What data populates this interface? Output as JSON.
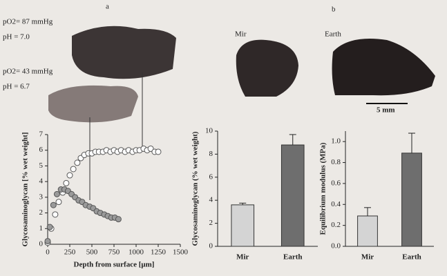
{
  "labels": {
    "panel_a": "a",
    "panel_b": "b",
    "po2_high": "pO2= 87 mmHg",
    "ph_high": "pH = 7.0",
    "po2_low": "pO2= 43 mmHg",
    "ph_low": "pH = 6.7",
    "img_mir": "Mir",
    "img_earth": "Earth",
    "scale": "5 mm"
  },
  "chart_data": [
    {
      "type": "scatter",
      "xlabel": "Depth from surface [μm]",
      "ylabel": "Glycosaminoglycan [% wet weight]",
      "xlim": [
        0,
        1500
      ],
      "xticks": [
        0,
        250,
        500,
        750,
        1000,
        1250,
        1500
      ],
      "ylim": [
        0,
        7
      ],
      "yticks": [
        0,
        1,
        2,
        3,
        4,
        5,
        6,
        7
      ],
      "series": [
        {
          "color": "#ffffff",
          "x": [
            0,
            40,
            85,
            125,
            170,
            210,
            250,
            290,
            335,
            375,
            415,
            460,
            500,
            540,
            580,
            625,
            665,
            710,
            750,
            790,
            830,
            875,
            915,
            960,
            1000,
            1040,
            1085,
            1125,
            1165,
            1210,
            1250
          ],
          "values": [
            0.1,
            1.0,
            1.9,
            2.7,
            3.3,
            3.9,
            4.4,
            4.8,
            5.2,
            5.5,
            5.7,
            5.8,
            5.8,
            5.9,
            5.9,
            5.9,
            6.0,
            5.9,
            6.0,
            5.9,
            6.0,
            5.9,
            6.0,
            5.9,
            6.0,
            6.0,
            6.1,
            6.0,
            6.1,
            5.9,
            5.9
          ]
        },
        {
          "color": "#9a9a9a",
          "x": [
            0,
            25,
            65,
            105,
            150,
            190,
            230,
            270,
            310,
            350,
            390,
            430,
            475,
            515,
            555,
            595,
            640,
            680,
            720,
            760,
            800
          ],
          "values": [
            0.2,
            1.1,
            2.5,
            3.2,
            3.5,
            3.5,
            3.4,
            3.2,
            3.0,
            2.8,
            2.7,
            2.5,
            2.4,
            2.3,
            2.1,
            2.0,
            1.9,
            1.8,
            1.7,
            1.7,
            1.6
          ]
        }
      ]
    },
    {
      "type": "bar",
      "ylabel": "Glycosaminoglycan (% wet weight)",
      "categories": [
        "Mir",
        "Earth"
      ],
      "values": [
        3.6,
        8.8
      ],
      "errors": [
        0.15,
        0.9
      ],
      "colors": [
        "#d4d4d4",
        "#6e6e6e"
      ],
      "ylim": [
        0,
        10
      ],
      "yticks": [
        0,
        2,
        4,
        6,
        8,
        10
      ]
    },
    {
      "type": "bar",
      "ylabel": "Equilibrium modulus (MPa)",
      "categories": [
        "Mir",
        "Earth"
      ],
      "values": [
        0.29,
        0.89
      ],
      "errors": [
        0.08,
        0.19
      ],
      "colors": [
        "#d4d4d4",
        "#6e6e6e"
      ],
      "ylim": [
        0,
        1.1
      ],
      "yticks": [
        {
          "value": 0,
          "label": "0.0"
        },
        0.2,
        0.4,
        0.6,
        0.8,
        {
          "value": 1,
          "label": "1.0"
        }
      ]
    }
  ]
}
